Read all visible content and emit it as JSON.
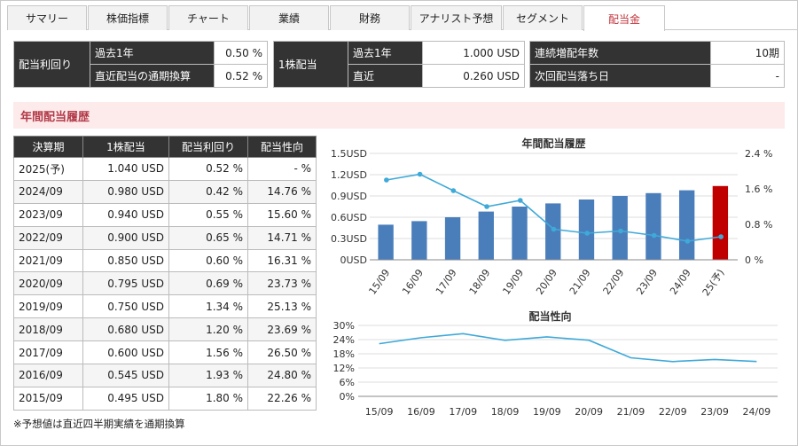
{
  "tabs": [
    "サマリー",
    "株価指標",
    "チャート",
    "業績",
    "財務",
    "アナリスト予想",
    "セグメント",
    "配当金"
  ],
  "active_tab": "配当金",
  "summary": {
    "yield": {
      "label": "配当利回り",
      "rows": [
        {
          "label": "過去1年",
          "value": "0.50 %"
        },
        {
          "label": "直近配当の通期換算",
          "value": "0.52 %"
        }
      ]
    },
    "dps": {
      "label": "1株配当",
      "rows": [
        {
          "label": "過去1年",
          "value": "1.000 USD"
        },
        {
          "label": "直近",
          "value": "0.260 USD"
        }
      ]
    },
    "streak": {
      "rows": [
        {
          "label": "連続増配年数",
          "value": "10期"
        },
        {
          "label": "次回配当落ち日",
          "value": "-"
        }
      ]
    }
  },
  "section_title": "年間配当履歴",
  "history": {
    "headers": [
      "決算期",
      "1株配当",
      "配当利回り",
      "配当性向"
    ],
    "rows": [
      [
        "2025(予)",
        "1.040 USD",
        "0.52 %",
        "- %"
      ],
      [
        "2024/09",
        "0.980 USD",
        "0.42 %",
        "14.76 %"
      ],
      [
        "2023/09",
        "0.940 USD",
        "0.55 %",
        "15.60 %"
      ],
      [
        "2022/09",
        "0.900 USD",
        "0.65 %",
        "14.71 %"
      ],
      [
        "2021/09",
        "0.850 USD",
        "0.60 %",
        "16.31 %"
      ],
      [
        "2020/09",
        "0.795 USD",
        "0.69 %",
        "23.73 %"
      ],
      [
        "2019/09",
        "0.750 USD",
        "1.34 %",
        "25.13 %"
      ],
      [
        "2018/09",
        "0.680 USD",
        "1.20 %",
        "23.69 %"
      ],
      [
        "2017/09",
        "0.600 USD",
        "1.56 %",
        "26.50 %"
      ],
      [
        "2016/09",
        "0.545 USD",
        "1.93 %",
        "24.80 %"
      ],
      [
        "2015/09",
        "0.495 USD",
        "1.80 %",
        "22.26 %"
      ]
    ]
  },
  "note": "※予想値は直近四半期実績を通期換算",
  "colors": {
    "bar": "#4a7ebb",
    "forecast_bar": "#c00000",
    "line": "#3fa9d8"
  },
  "chart_data": [
    {
      "type": "bar",
      "title": "年間配当履歴",
      "categories": [
        "15/09",
        "16/09",
        "17/09",
        "18/09",
        "19/09",
        "20/09",
        "21/09",
        "22/09",
        "23/09",
        "24/09",
        "25(予)"
      ],
      "y_ticks": [
        "0USD",
        "0.3USD",
        "0.6USD",
        "0.9USD",
        "1.2USD",
        "1.5USD"
      ],
      "y2_ticks": [
        "0 %",
        "0.8 %",
        "1.6 %",
        "2.4 %"
      ],
      "ylim": [
        0,
        1.5
      ],
      "y2lim": [
        0,
        2.4
      ],
      "series": [
        {
          "type": "bar",
          "values": [
            0.495,
            0.545,
            0.6,
            0.68,
            0.75,
            0.795,
            0.85,
            0.9,
            0.94,
            0.98,
            1.04
          ]
        },
        {
          "type": "line",
          "axis": "right",
          "values": [
            1.8,
            1.93,
            1.56,
            1.2,
            1.34,
            0.69,
            0.6,
            0.65,
            0.55,
            0.42,
            0.52
          ]
        }
      ]
    },
    {
      "type": "line",
      "title": "配当性向",
      "categories": [
        "15/09",
        "16/09",
        "17/09",
        "18/09",
        "19/09",
        "20/09",
        "21/09",
        "22/09",
        "23/09",
        "24/09"
      ],
      "y_ticks": [
        "0%",
        "6%",
        "12%",
        "18%",
        "24%",
        "30%"
      ],
      "ylim": [
        0,
        30
      ],
      "values": [
        22.26,
        24.8,
        26.5,
        23.69,
        25.13,
        23.73,
        16.31,
        14.71,
        15.6,
        14.76
      ]
    }
  ]
}
